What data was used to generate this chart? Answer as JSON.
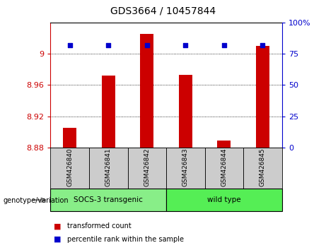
{
  "title": "GDS3664 / 10457844",
  "samples": [
    "GSM426840",
    "GSM426841",
    "GSM426842",
    "GSM426843",
    "GSM426844",
    "GSM426845"
  ],
  "transformed_counts": [
    8.905,
    8.972,
    9.025,
    8.973,
    8.889,
    9.01
  ],
  "percentile_ranks": [
    82,
    82,
    82,
    82,
    82,
    82
  ],
  "y_min": 8.88,
  "y_max": 9.04,
  "y_ticks": [
    8.88,
    8.92,
    8.96,
    9.0
  ],
  "y_tick_labels": [
    "8.88",
    "8.92",
    "8.96",
    "9"
  ],
  "y2_ticks": [
    0,
    25,
    50,
    75,
    100
  ],
  "y2_tick_labels": [
    "0",
    "25",
    "50",
    "75",
    "100%"
  ],
  "bar_color": "#cc0000",
  "dot_color": "#0000cc",
  "axis_color_left": "#cc0000",
  "axis_color_right": "#0000cc",
  "groups": [
    {
      "label": "SOCS-3 transgenic",
      "color": "#88ee88"
    },
    {
      "label": "wild type",
      "color": "#55ee55"
    }
  ],
  "group_label_prefix": "genotype/variation",
  "legend_items": [
    {
      "label": "transformed count",
      "color": "#cc0000"
    },
    {
      "label": "percentile rank within the sample",
      "color": "#0000cc"
    }
  ],
  "bg_color_samples": "#cccccc",
  "tick_label_fontsize": 8,
  "bar_width": 0.35
}
